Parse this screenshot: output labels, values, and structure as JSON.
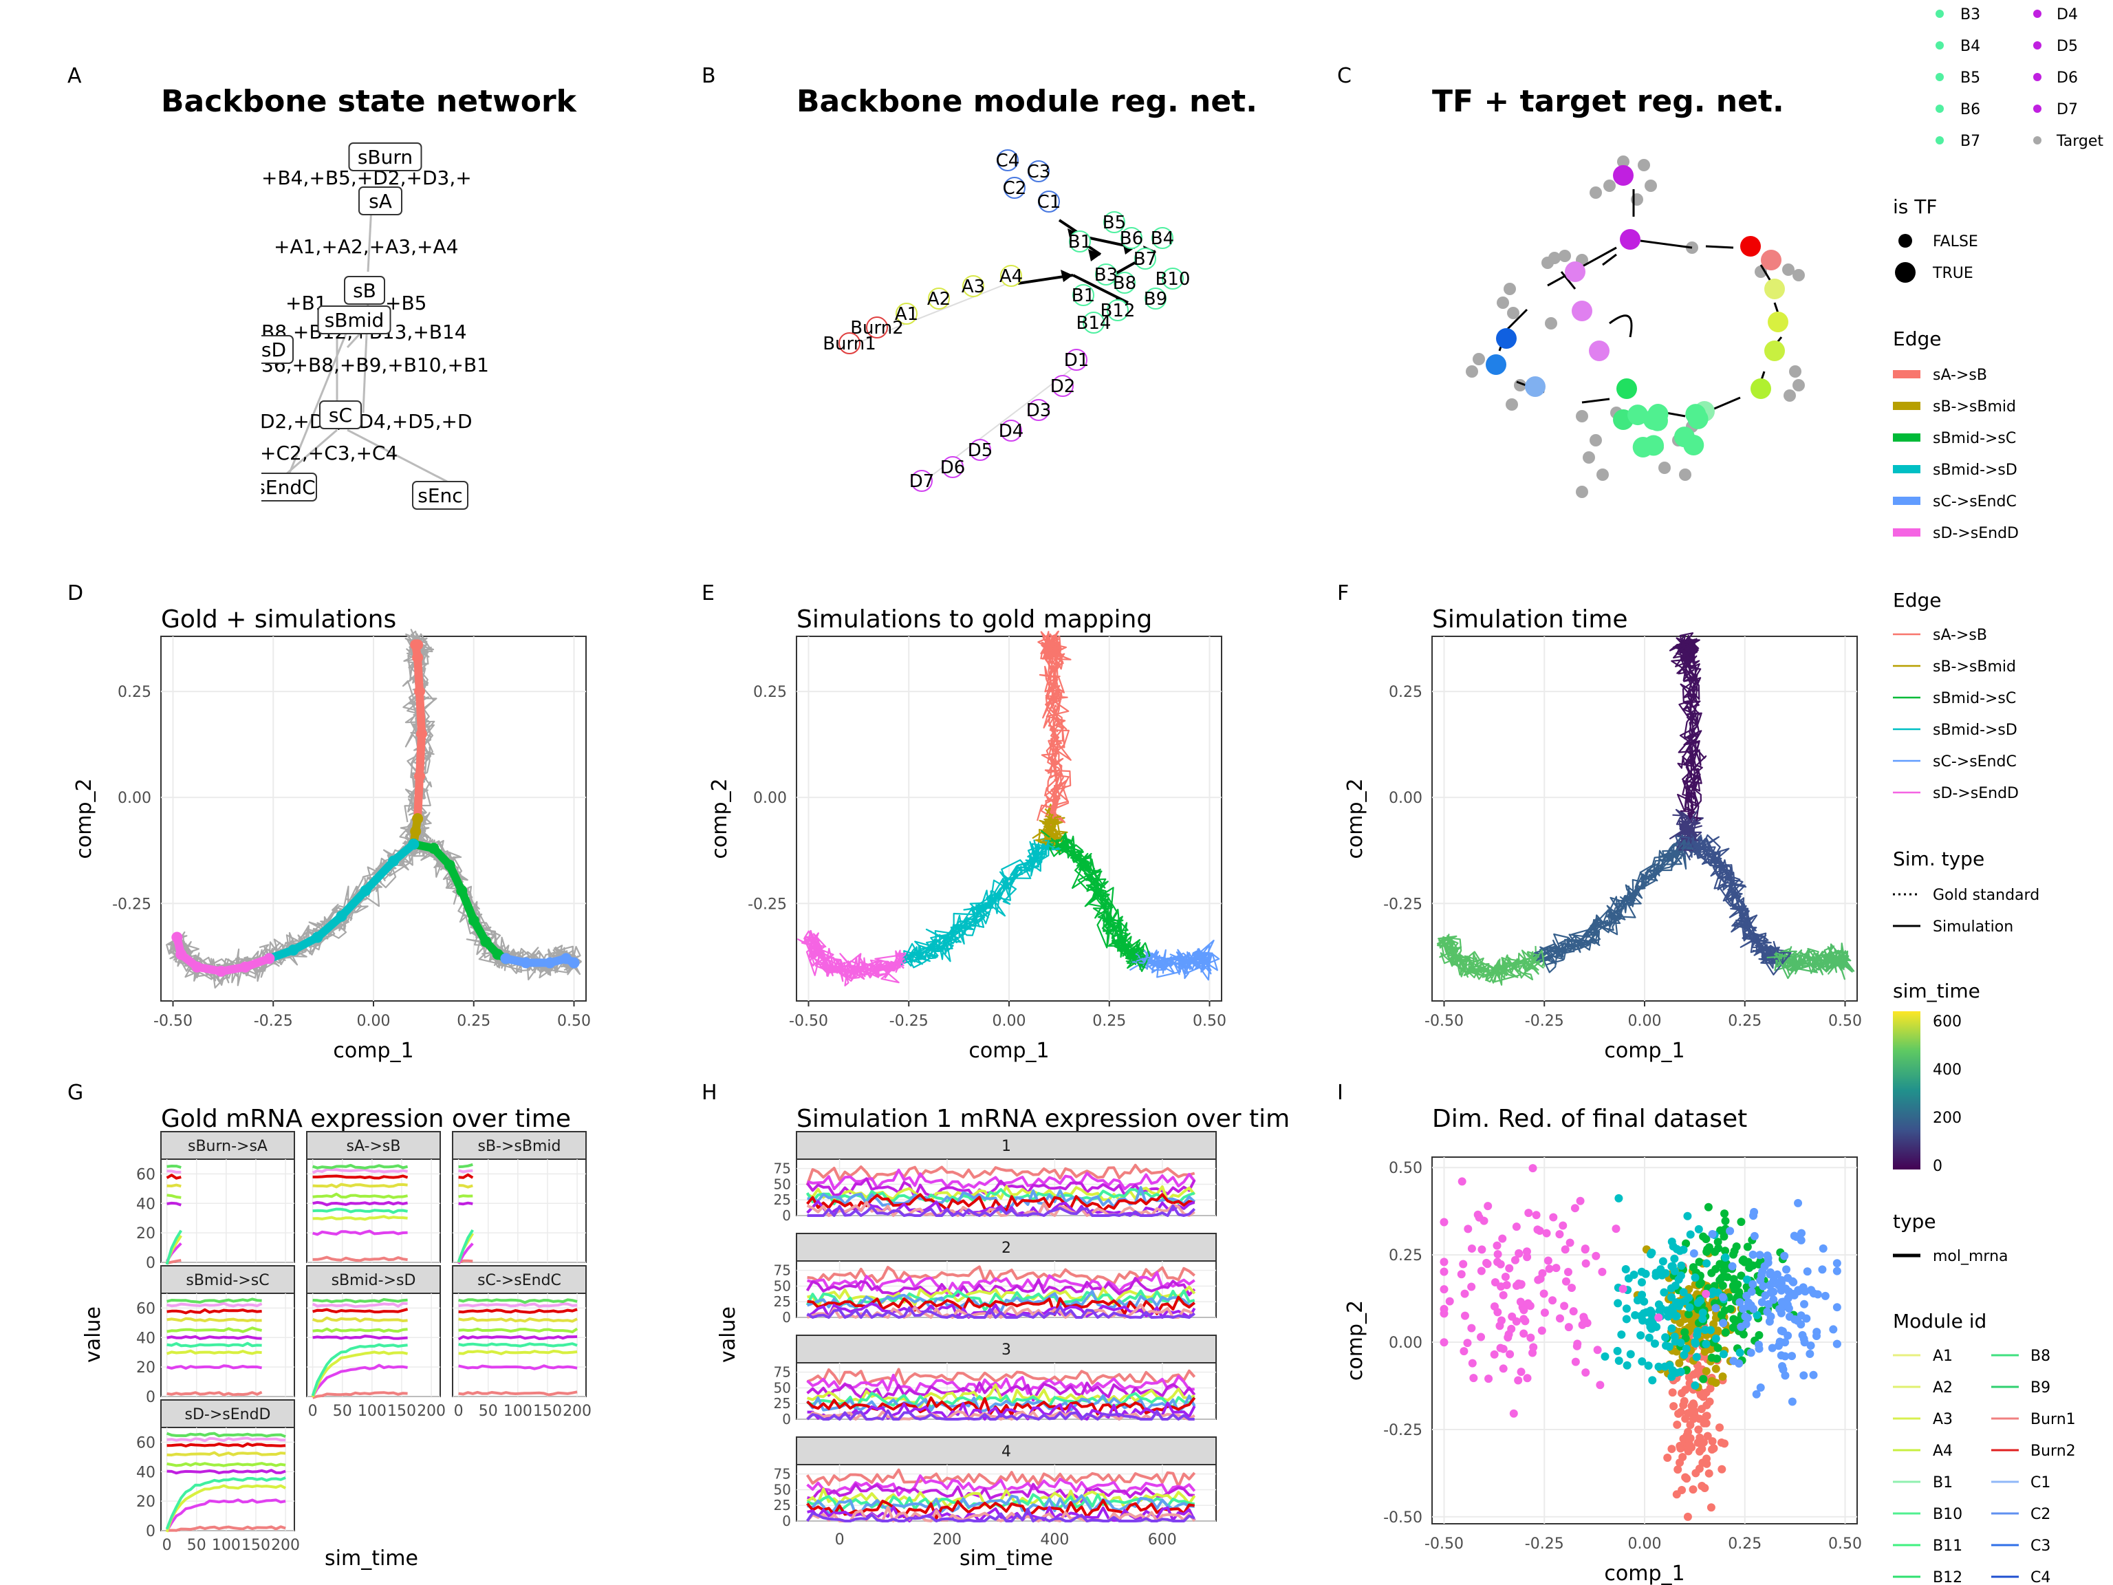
{
  "panel_letters": [
    "A",
    "B",
    "C",
    "D",
    "E",
    "F",
    "G",
    "H",
    "I"
  ],
  "titles": {
    "A": "Backbone state network",
    "B": "Backbone module reg. net.",
    "C": "TF + target reg. net.",
    "D": "Gold + simulations",
    "E": "Simulations to gold mapping",
    "F": "Simulation time",
    "G": "Gold mRNA expression over time",
    "H": "Simulation 1 mRNA expression over tim",
    "I": "Dim. Red. of final dataset"
  },
  "state_network": {
    "nodes": [
      "sBurn",
      "sA",
      "sB",
      "sBmid",
      "sD",
      "sC",
      "sEndC",
      "sEnc"
    ],
    "edge_labels": [
      "+B4,+B5,+D2,+D3,+",
      "+A1,+A2,+A3,+A4",
      "+B1",
      "+B5",
      "B8,+B12,+B13,+B14",
      "36,+B8,+B9,+B10,+B1",
      "D2,+D1,+D4,+D5,+D",
      "+C2,+C3,+C4"
    ]
  },
  "module_network": {
    "labels": [
      "C4",
      "C3",
      "C2",
      "C1",
      "B5",
      "B4",
      "B6",
      "B1",
      "B7",
      "B3",
      "B10",
      "B8",
      "B9",
      "B1",
      "B12",
      "B14",
      "A4",
      "A3",
      "A2",
      "A1",
      "Burn2",
      "Burn1",
      "D1",
      "D2",
      "D3",
      "D4",
      "D5",
      "D6",
      "D7"
    ]
  },
  "axes": {
    "comp_1": "comp_1",
    "comp_2": "comp_2",
    "value": "value",
    "sim_time": "sim_time"
  },
  "chart_data": [
    {
      "panel": "D",
      "type": "line",
      "title": "Gold + simulations",
      "xlabel": "comp_1",
      "ylabel": "comp_2",
      "xlim": [
        -0.53,
        0.53
      ],
      "ylim": [
        -0.48,
        0.38
      ],
      "xticks": [
        "-0.50",
        "-0.25",
        "0.00",
        "0.25",
        "0.50"
      ],
      "yticks": [
        "0.25",
        "0.00",
        "-0.25"
      ],
      "series": [
        {
          "name": "sA->sB",
          "color": "#F8766D",
          "x": [
            0.11,
            0.115,
            0.12,
            0.115,
            0.11,
            0.105,
            0.11
          ],
          "y": [
            -0.05,
            0.05,
            0.15,
            0.25,
            0.33,
            0.36,
            0.36
          ]
        },
        {
          "name": "sB->sBmid",
          "color": "#B79F00",
          "x": [
            0.11,
            0.105,
            0.1
          ],
          "y": [
            -0.05,
            -0.08,
            -0.11
          ]
        },
        {
          "name": "sBmid->sC",
          "color": "#00BA38",
          "x": [
            0.1,
            0.15,
            0.19,
            0.22,
            0.25,
            0.28,
            0.31,
            0.33
          ],
          "y": [
            -0.11,
            -0.12,
            -0.16,
            -0.22,
            -0.29,
            -0.34,
            -0.37,
            -0.38
          ]
        },
        {
          "name": "sBmid->sD",
          "color": "#00BFC4",
          "x": [
            0.1,
            0.05,
            -0.02,
            -0.08,
            -0.14,
            -0.2,
            -0.26
          ],
          "y": [
            -0.11,
            -0.15,
            -0.22,
            -0.28,
            -0.33,
            -0.36,
            -0.38
          ]
        },
        {
          "name": "sC->sEndC",
          "color": "#619CFF",
          "x": [
            0.33,
            0.38,
            0.44,
            0.48,
            0.5
          ],
          "y": [
            -0.38,
            -0.39,
            -0.39,
            -0.38,
            -0.39
          ]
        },
        {
          "name": "sD->sEndD",
          "color": "#F564E3",
          "x": [
            -0.26,
            -0.32,
            -0.38,
            -0.44,
            -0.48,
            -0.49
          ],
          "y": [
            -0.38,
            -0.4,
            -0.41,
            -0.4,
            -0.37,
            -0.33
          ]
        }
      ]
    },
    {
      "panel": "E",
      "type": "line",
      "title": "Simulations to gold mapping",
      "xlabel": "comp_1",
      "ylabel": "comp_2",
      "xlim": [
        -0.53,
        0.53
      ],
      "ylim": [
        -0.48,
        0.38
      ],
      "xticks": [
        "-0.50",
        "-0.25",
        "0.00",
        "0.25",
        "0.50"
      ],
      "yticks": [
        "0.25",
        "0.00",
        "-0.25"
      ]
    },
    {
      "panel": "F",
      "type": "line",
      "title": "Simulation time",
      "xlabel": "comp_1",
      "ylabel": "comp_2",
      "xlim": [
        -0.53,
        0.53
      ],
      "ylim": [
        -0.48,
        0.38
      ],
      "xticks": [
        "-0.50",
        "-0.25",
        "0.00",
        "0.25",
        "0.50"
      ],
      "yticks": [
        "0.25",
        "0.00",
        "-0.25"
      ],
      "color_scale": "sim_time",
      "range": [
        0,
        650
      ]
    },
    {
      "panel": "G",
      "type": "line",
      "title": "Gold mRNA expression over time",
      "xlabel": "sim_time",
      "ylabel": "value",
      "facets": [
        "sBurn->sA",
        "sA->sB",
        "sB->sBmid",
        "sBmid->sC",
        "sBmid->sD",
        "sC->sEndC",
        "sD->sEndD"
      ],
      "xticks": [
        "0",
        "50",
        "100",
        "150",
        "200"
      ],
      "yticks": [
        "0",
        "20",
        "40",
        "60"
      ],
      "ylim": [
        0,
        70
      ],
      "xlim": [
        -10,
        215
      ]
    },
    {
      "panel": "H",
      "type": "line",
      "title": "Simulation 1 mRNA expression over tim",
      "xlabel": "sim_time",
      "ylabel": "value",
      "facets": [
        "1",
        "2",
        "3",
        "4"
      ],
      "xticks": [
        "0",
        "200",
        "400",
        "600"
      ],
      "yticks": [
        "0",
        "25",
        "50",
        "75"
      ],
      "xlim": [
        -80,
        700
      ],
      "ylim": [
        0,
        90
      ]
    },
    {
      "panel": "I",
      "type": "scatter",
      "title": "Dim. Red. of final dataset",
      "xlabel": "comp_1",
      "ylabel": "comp_2",
      "xlim": [
        -0.53,
        0.53
      ],
      "ylim": [
        -0.52,
        0.53
      ],
      "xticks": [
        "-0.50",
        "-0.25",
        "0.00",
        "0.25",
        "0.50"
      ],
      "yticks": [
        "0.50",
        "0.25",
        "0.00",
        "-0.25",
        "-0.50"
      ],
      "groups": [
        {
          "name": "sA->sB",
          "color": "#F8766D",
          "cx": 0.13,
          "cy": -0.2,
          "sx": 0.03,
          "sy": 0.14
        },
        {
          "name": "sB->sBmid",
          "color": "#B79F00",
          "cx": 0.13,
          "cy": 0.05,
          "sx": 0.05,
          "sy": 0.08
        },
        {
          "name": "sBmid->sC",
          "color": "#00BA38",
          "cx": 0.2,
          "cy": 0.15,
          "sx": 0.06,
          "sy": 0.1
        },
        {
          "name": "sBmid->sD",
          "color": "#00BFC4",
          "cx": 0.05,
          "cy": 0.12,
          "sx": 0.07,
          "sy": 0.11
        },
        {
          "name": "sC->sEndC",
          "color": "#619CFF",
          "cx": 0.34,
          "cy": 0.12,
          "sx": 0.07,
          "sy": 0.1
        },
        {
          "name": "sD->sEndD",
          "color": "#F564E3",
          "cx": -0.28,
          "cy": 0.14,
          "sx": 0.12,
          "sy": 0.13
        }
      ]
    }
  ],
  "legends": {
    "top_modules_left": [
      "B3",
      "B4",
      "B5",
      "B6",
      "B7"
    ],
    "top_modules_right": [
      "D4",
      "D5",
      "D6",
      "D7",
      "Target"
    ],
    "is_tf": {
      "title": "is TF",
      "items": [
        "FALSE",
        "TRUE"
      ]
    },
    "edge1": {
      "title": "Edge",
      "items": [
        {
          "label": "sA->sB",
          "color": "#F8766D"
        },
        {
          "label": "sB->sBmid",
          "color": "#B79F00"
        },
        {
          "label": "sBmid->sC",
          "color": "#00BA38"
        },
        {
          "label": "sBmid->sD",
          "color": "#00BFC4"
        },
        {
          "label": "sC->sEndC",
          "color": "#619CFF"
        },
        {
          "label": "sD->sEndD",
          "color": "#F564E3"
        }
      ]
    },
    "edge2": {
      "title": "Edge",
      "items": [
        {
          "label": "sA->sB",
          "color": "#F8766D"
        },
        {
          "label": "sB->sBmid",
          "color": "#B79F00"
        },
        {
          "label": "sBmid->sC",
          "color": "#00BA38"
        },
        {
          "label": "sBmid->sD",
          "color": "#00BFC4"
        },
        {
          "label": "sC->sEndC",
          "color": "#619CFF"
        },
        {
          "label": "sD->sEndD",
          "color": "#F564E3"
        }
      ]
    },
    "sim_type": {
      "title": "Sim. type",
      "items": [
        "Gold standard",
        "Simulation"
      ]
    },
    "sim_time": {
      "title": "sim_time",
      "ticks": [
        "600",
        "400",
        "200",
        "0"
      ]
    },
    "type": {
      "title": "type",
      "items": [
        "mol_mrna"
      ]
    },
    "module_id": {
      "title": "Module id",
      "left": [
        "A1",
        "A2",
        "A3",
        "A4",
        "B1",
        "B10",
        "B11",
        "B12"
      ],
      "right": [
        "B8",
        "B9",
        "Burn1",
        "Burn2",
        "C1",
        "C2",
        "C3",
        "C4"
      ]
    }
  }
}
